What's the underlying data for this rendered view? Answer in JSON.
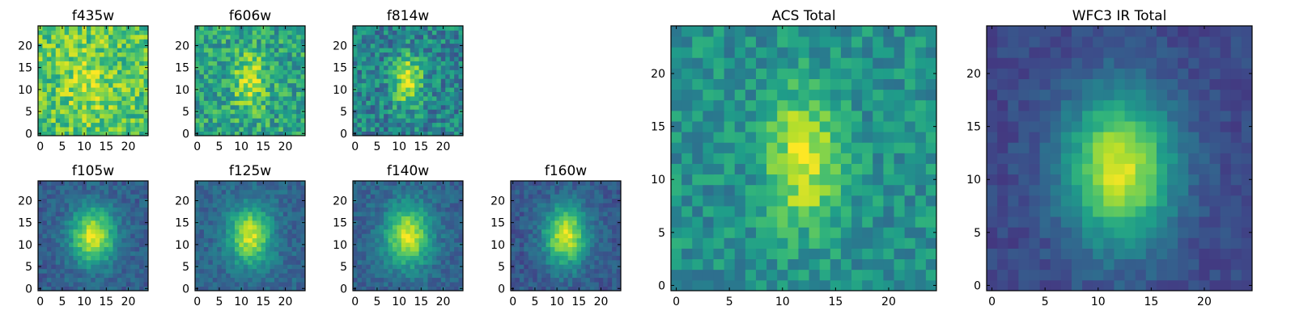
{
  "figure": {
    "colormap": "viridis",
    "colormap_stops": [
      "#440154",
      "#482878",
      "#3e4989",
      "#31688e",
      "#26828e",
      "#1f9e89",
      "#35b779",
      "#6ece58",
      "#b5de2b",
      "#fde725"
    ]
  },
  "chart_data": [
    {
      "type": "heatmap",
      "title": "f435w",
      "grid_size": 25,
      "xlim": [
        -0.5,
        24.5
      ],
      "ylim": [
        -0.5,
        24.5
      ],
      "xticks": [
        0,
        5,
        10,
        15,
        20
      ],
      "yticks": [
        0,
        5,
        10,
        15,
        20
      ],
      "source": {
        "peak_x": 11,
        "peak_y": 12,
        "sigma_x": 4,
        "sigma_y": 6,
        "amplitude": 0.15,
        "background": 0.72,
        "noise": 0.2,
        "seed": 11
      }
    },
    {
      "type": "heatmap",
      "title": "f606w",
      "grid_size": 25,
      "xlim": [
        -0.5,
        24.5
      ],
      "ylim": [
        -0.5,
        24.5
      ],
      "xticks": [
        0,
        5,
        10,
        15,
        20
      ],
      "yticks": [
        0,
        5,
        10,
        15,
        20
      ],
      "source": {
        "peak_x": 12,
        "peak_y": 12,
        "sigma_x": 2.5,
        "sigma_y": 4.5,
        "amplitude": 0.35,
        "background": 0.58,
        "noise": 0.2,
        "seed": 23
      }
    },
    {
      "type": "heatmap",
      "title": "f814w",
      "grid_size": 25,
      "xlim": [
        -0.5,
        24.5
      ],
      "ylim": [
        -0.5,
        24.5
      ],
      "xticks": [
        0,
        5,
        10,
        15,
        20
      ],
      "yticks": [
        0,
        5,
        10,
        15,
        20
      ],
      "source": {
        "peak_x": 12,
        "peak_y": 12,
        "sigma_x": 2.3,
        "sigma_y": 4,
        "amplitude": 0.5,
        "background": 0.45,
        "noise": 0.2,
        "seed": 37
      }
    },
    {
      "type": "heatmap",
      "title": "f105w",
      "grid_size": 25,
      "xlim": [
        -0.5,
        24.5
      ],
      "ylim": [
        -0.5,
        24.5
      ],
      "xticks": [
        0,
        5,
        10,
        15,
        20
      ],
      "yticks": [
        0,
        5,
        10,
        15,
        20
      ],
      "source": {
        "peak_x": 12,
        "peak_y": 12,
        "sigma_x": 3.5,
        "sigma_y": 4.5,
        "amplitude": 0.65,
        "background": 0.3,
        "noise": 0.09,
        "seed": 41
      }
    },
    {
      "type": "heatmap",
      "title": "f125w",
      "grid_size": 25,
      "xlim": [
        -0.5,
        24.5
      ],
      "ylim": [
        -0.5,
        24.5
      ],
      "xticks": [
        0,
        5,
        10,
        15,
        20
      ],
      "yticks": [
        0,
        5,
        10,
        15,
        20
      ],
      "source": {
        "peak_x": 12,
        "peak_y": 12,
        "sigma_x": 3.3,
        "sigma_y": 4.6,
        "amplitude": 0.6,
        "background": 0.33,
        "noise": 0.09,
        "seed": 53
      }
    },
    {
      "type": "heatmap",
      "title": "f140w",
      "grid_size": 25,
      "xlim": [
        -0.5,
        24.5
      ],
      "ylim": [
        -0.5,
        24.5
      ],
      "xticks": [
        0,
        5,
        10,
        15,
        20
      ],
      "yticks": [
        0,
        5,
        10,
        15,
        20
      ],
      "source": {
        "peak_x": 12,
        "peak_y": 12,
        "sigma_x": 3.6,
        "sigma_y": 4.8,
        "amplitude": 0.62,
        "background": 0.32,
        "noise": 0.09,
        "seed": 67
      }
    },
    {
      "type": "heatmap",
      "title": "f160w",
      "grid_size": 25,
      "xlim": [
        -0.5,
        24.5
      ],
      "ylim": [
        -0.5,
        24.5
      ],
      "xticks": [
        0,
        5,
        10,
        15,
        20
      ],
      "yticks": [
        0,
        5,
        10,
        15,
        20
      ],
      "source": {
        "peak_x": 12,
        "peak_y": 12,
        "sigma_x": 3.4,
        "sigma_y": 4.8,
        "amplitude": 0.66,
        "background": 0.28,
        "noise": 0.09,
        "seed": 79
      }
    },
    {
      "type": "heatmap",
      "title": "ACS Total",
      "grid_size": 25,
      "xlim": [
        -0.5,
        24.5
      ],
      "ylim": [
        -0.5,
        24.5
      ],
      "xticks": [
        0,
        5,
        10,
        15,
        20
      ],
      "yticks": [
        0,
        5,
        10,
        15,
        20
      ],
      "source": {
        "peak_x": 12,
        "peak_y": 12,
        "sigma_x": 2.4,
        "sigma_y": 4.5,
        "amplitude": 0.45,
        "background": 0.5,
        "noise": 0.14,
        "seed": 97
      }
    },
    {
      "type": "heatmap",
      "title": "WFC3 IR Total",
      "grid_size": 25,
      "xlim": [
        -0.5,
        24.5
      ],
      "ylim": [
        -0.5,
        24.5
      ],
      "xticks": [
        0,
        5,
        10,
        15,
        20
      ],
      "yticks": [
        0,
        5,
        10,
        15,
        20
      ],
      "source": {
        "peak_x": 12,
        "peak_y": 11,
        "sigma_x": 3.6,
        "sigma_y": 5,
        "amplitude": 0.72,
        "background": 0.22,
        "noise": 0.06,
        "seed": 113
      }
    }
  ]
}
